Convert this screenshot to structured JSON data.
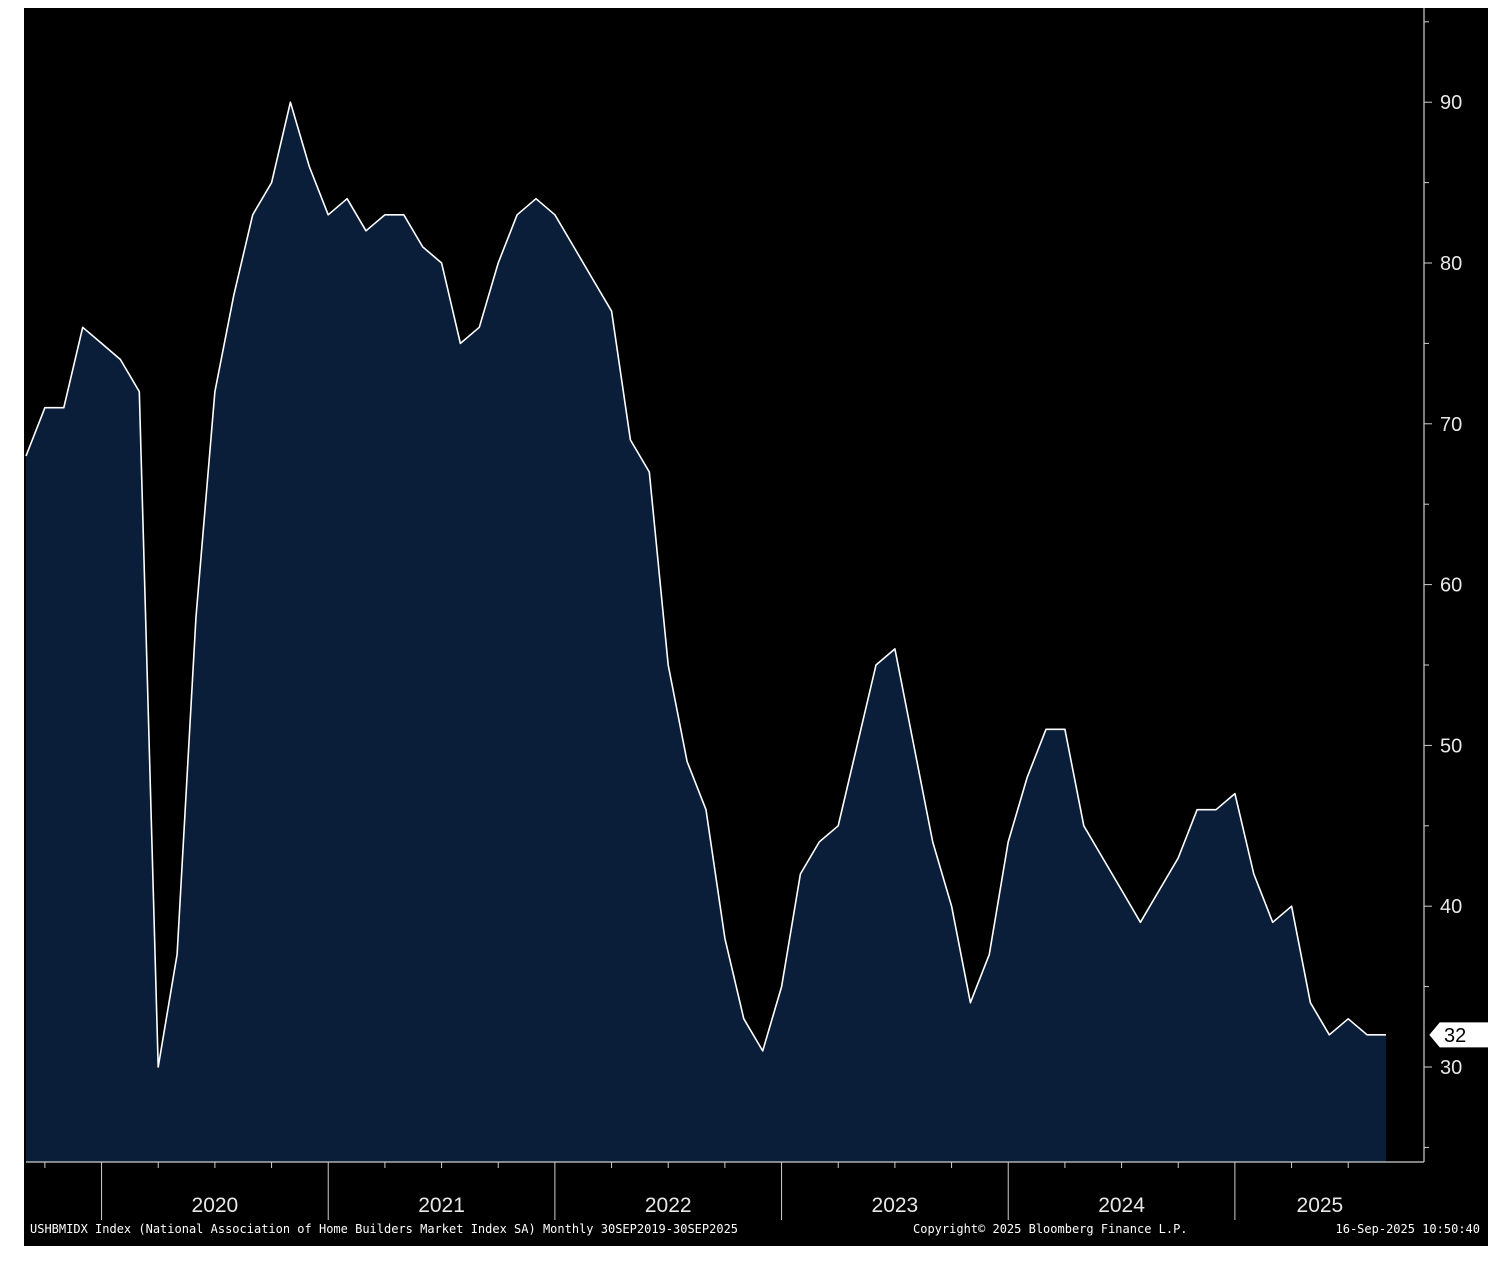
{
  "chart_data": {
    "type": "area",
    "ylim": [
      24,
      95
    ],
    "yticks": [
      30,
      40,
      50,
      60,
      70,
      80,
      90
    ],
    "x_year_labels": [
      "2020",
      "2021",
      "2022",
      "2023",
      "2024",
      "2025"
    ],
    "x_start": "2019-09",
    "x_end": "2025-09",
    "grid": false,
    "colors": {
      "fill": "#0a1e3a",
      "line": "#ffffff",
      "background": "#000000",
      "axis": "#cfcfcf"
    },
    "series": [
      {
        "name": "USHBMIDX Index",
        "x": [
          "2019-09",
          "2019-10",
          "2019-11",
          "2019-12",
          "2020-01",
          "2020-02",
          "2020-03",
          "2020-04",
          "2020-05",
          "2020-06",
          "2020-07",
          "2020-08",
          "2020-09",
          "2020-10",
          "2020-11",
          "2020-12",
          "2021-01",
          "2021-02",
          "2021-03",
          "2021-04",
          "2021-05",
          "2021-06",
          "2021-07",
          "2021-08",
          "2021-09",
          "2021-10",
          "2021-11",
          "2021-12",
          "2022-01",
          "2022-02",
          "2022-03",
          "2022-04",
          "2022-05",
          "2022-06",
          "2022-07",
          "2022-08",
          "2022-09",
          "2022-10",
          "2022-11",
          "2022-12",
          "2023-01",
          "2023-02",
          "2023-03",
          "2023-04",
          "2023-05",
          "2023-06",
          "2023-07",
          "2023-08",
          "2023-09",
          "2023-10",
          "2023-11",
          "2023-12",
          "2024-01",
          "2024-02",
          "2024-03",
          "2024-04",
          "2024-05",
          "2024-06",
          "2024-07",
          "2024-08",
          "2024-09",
          "2024-10",
          "2024-11",
          "2024-12",
          "2025-01",
          "2025-02",
          "2025-03",
          "2025-04",
          "2025-05",
          "2025-06",
          "2025-07",
          "2025-08",
          "2025-09"
        ],
        "values": [
          68,
          71,
          71,
          76,
          75,
          74,
          72,
          30,
          37,
          58,
          72,
          78,
          83,
          85,
          90,
          86,
          83,
          84,
          82,
          83,
          83,
          81,
          80,
          75,
          76,
          80,
          83,
          84,
          83,
          81,
          79,
          77,
          69,
          67,
          55,
          49,
          46,
          38,
          33,
          31,
          35,
          42,
          44,
          45,
          50,
          55,
          56,
          50,
          44,
          40,
          34,
          37,
          44,
          48,
          51,
          51,
          45,
          43,
          41,
          39,
          41,
          43,
          46,
          46,
          47,
          42,
          39,
          40,
          34,
          32,
          33,
          32,
          32
        ]
      }
    ],
    "last_value_label": "32"
  },
  "footer": {
    "description": "USHBMIDX Index (National Association of Home Builders Market Index SA)  Monthly 30SEP2019-30SEP2025",
    "copyright": "Copyright© 2025 Bloomberg Finance L.P.",
    "timestamp": "16-Sep-2025 10:50:40"
  }
}
